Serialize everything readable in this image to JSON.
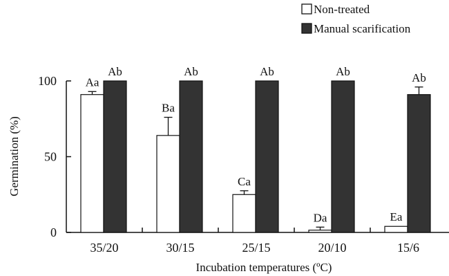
{
  "chart_data": {
    "type": "bar",
    "title": "",
    "xlabel": "Incubation temperatures (ºC)",
    "ylabel": "Germination (%)",
    "categories": [
      "35/20",
      "30/15",
      "25/15",
      "20/10",
      "15/6"
    ],
    "ylim": [
      0,
      100
    ],
    "yticks": [
      0,
      50,
      100
    ],
    "grid": false,
    "legend_position": "top-right",
    "series": [
      {
        "name": "Non-treated",
        "color": "#ffffff",
        "values": [
          91,
          64,
          25,
          1.5,
          4
        ],
        "errors": [
          2,
          12,
          2.5,
          2,
          0
        ],
        "labels": [
          "Aa",
          "Ba",
          "Ca",
          "Da",
          "Ea"
        ]
      },
      {
        "name": "Manual scarification",
        "color": "#333333",
        "values": [
          100,
          100,
          100,
          100,
          91
        ],
        "errors": [
          0,
          0,
          0,
          0,
          5
        ],
        "labels": [
          "Ab",
          "Ab",
          "Ab",
          "Ab",
          "Ab"
        ]
      }
    ]
  }
}
